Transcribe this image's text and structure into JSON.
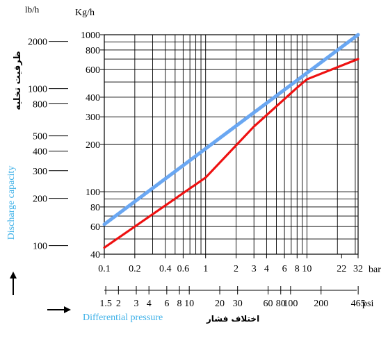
{
  "chart_data": {
    "type": "line",
    "xscale": "log",
    "yscale": "log",
    "xlim": [
      0.1,
      32
    ],
    "ylim": [
      40,
      1000
    ],
    "grid": true,
    "legend": "none",
    "units": {
      "x_primary": "bar",
      "x_secondary": "psi",
      "y_primary": "Kg/h",
      "y_secondary": "lb/h"
    },
    "labels": {
      "ylabel_en": "Discharge capacity",
      "ylabel_fa": "ظرفیت تخلیه",
      "xlabel_en": "Differential pressure",
      "xlabel_fa": "اختلاف فشار"
    },
    "x_ticks_bar": [
      {
        "value": 0.1,
        "label": "0.1"
      },
      {
        "value": 0.2,
        "label": "0.2"
      },
      {
        "value": 0.4,
        "label": "0.4"
      },
      {
        "value": 0.6,
        "label": "0.6"
      },
      {
        "value": 1,
        "label": "1"
      },
      {
        "value": 2,
        "label": "2"
      },
      {
        "value": 3,
        "label": "3"
      },
      {
        "value": 4,
        "label": "4"
      },
      {
        "value": 6,
        "label": "6"
      },
      {
        "value": 8,
        "label": "8"
      },
      {
        "value": 10,
        "label": "10"
      },
      {
        "value": 22,
        "label": "22"
      },
      {
        "value": 32,
        "label": "32"
      }
    ],
    "x_ticks_psi": [
      {
        "value": 1.5,
        "label": "1.5"
      },
      {
        "value": 2,
        "label": "2"
      },
      {
        "value": 3,
        "label": "3"
      },
      {
        "value": 4,
        "label": "4"
      },
      {
        "value": 6,
        "label": "6"
      },
      {
        "value": 8,
        "label": "8"
      },
      {
        "value": 10,
        "label": "10"
      },
      {
        "value": 20,
        "label": "20"
      },
      {
        "value": 30,
        "label": "30"
      },
      {
        "value": 60,
        "label": "60"
      },
      {
        "value": 80,
        "label": "80"
      },
      {
        "value": 100,
        "label": "100"
      },
      {
        "value": 200,
        "label": "200"
      },
      {
        "value": 465,
        "label": "465"
      }
    ],
    "y_ticks_kgh": [
      {
        "value": 40,
        "label": "40"
      },
      {
        "value": 60,
        "label": "60"
      },
      {
        "value": 80,
        "label": "80"
      },
      {
        "value": 100,
        "label": "100"
      },
      {
        "value": 200,
        "label": "200"
      },
      {
        "value": 300,
        "label": "300"
      },
      {
        "value": 400,
        "label": "400"
      },
      {
        "value": 600,
        "label": "600"
      },
      {
        "value": 800,
        "label": "800"
      },
      {
        "value": 1000,
        "label": "1000"
      }
    ],
    "y_ticks_lbh": [
      {
        "value": 100,
        "label": "100"
      },
      {
        "value": 200,
        "label": "200"
      },
      {
        "value": 300,
        "label": "300"
      },
      {
        "value": 400,
        "label": "400"
      },
      {
        "value": 500,
        "label": "500"
      },
      {
        "value": 800,
        "label": "800"
      },
      {
        "value": 1000,
        "label": "1000"
      },
      {
        "value": 2000,
        "label": "2000"
      }
    ],
    "series": [
      {
        "color": "#6aa7f2",
        "x": [
          0.1,
          32
        ],
        "y": [
          62,
          1000
        ]
      },
      {
        "color": "#ee1111",
        "x": [
          0.1,
          1,
          3,
          8,
          10,
          32
        ],
        "y": [
          44,
          123,
          260,
          460,
          520,
          700
        ]
      }
    ]
  },
  "colors": {
    "ylabel_en": "#3fb1e8",
    "xlabel_en": "#3fb1e8"
  }
}
